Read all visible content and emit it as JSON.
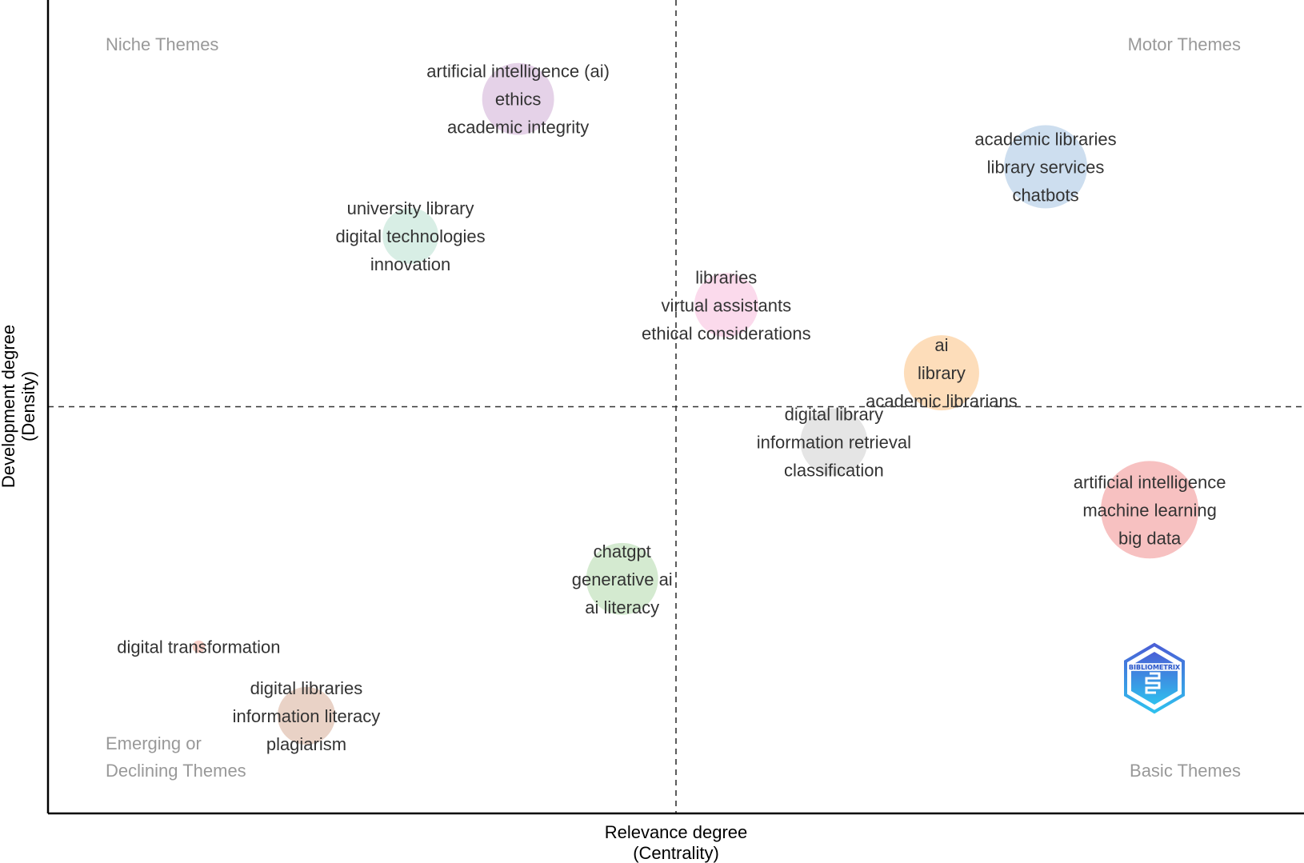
{
  "chart_data": {
    "type": "scatter",
    "subtype": "bubble thematic map",
    "xlabel": [
      "Relevance degree",
      "(Centrality)"
    ],
    "ylabel": [
      "Development degree",
      "(Density)"
    ],
    "xlim": [
      0,
      3.5
    ],
    "ylim": [
      0,
      60
    ],
    "ticks": "none",
    "grid": false,
    "reference_lines": {
      "x": 1.75,
      "y": 30.0,
      "style": "dashed"
    },
    "quadrants": {
      "top_left": "Niche Themes",
      "top_right": "Motor Themes",
      "bottom_left": [
        "Emerging or",
        "Declining Themes"
      ],
      "bottom_right": "Basic Themes"
    },
    "clusters": [
      {
        "labels": [
          "artificial intelligence (ai)",
          "ethics",
          "academic integrity"
        ],
        "centrality": 1.31,
        "density": 52.7,
        "frequency": 202,
        "color": "#e2cde6"
      },
      {
        "labels": [
          "university library",
          "digital technologies",
          "innovation"
        ],
        "centrality": 1.01,
        "density": 42.6,
        "frequency": 122,
        "color": "#d4ece2"
      },
      {
        "labels": [
          "academic libraries",
          "library services",
          "chatbots"
        ],
        "centrality": 2.78,
        "density": 47.7,
        "frequency": 270,
        "color": "#c8daed"
      },
      {
        "labels": [
          "libraries",
          "virtual assistants",
          "ethical considerations"
        ],
        "centrality": 1.89,
        "density": 37.5,
        "frequency": 160,
        "color": "#fbd6ea"
      },
      {
        "labels": [
          "ai",
          "library",
          "academic librarians"
        ],
        "centrality": 2.49,
        "density": 32.5,
        "frequency": 221,
        "color": "#fdd9b3"
      },
      {
        "labels": [
          "digital library",
          "information retrieval",
          "classification"
        ],
        "centrality": 2.19,
        "density": 27.4,
        "frequency": 176,
        "color": "#e2e2e2"
      },
      {
        "labels": [
          "artificial intelligence",
          "machine learning",
          "big data"
        ],
        "centrality": 3.07,
        "density": 22.4,
        "frequency": 372,
        "color": "#f6baba"
      },
      {
        "labels": [
          "chatgpt",
          "generative ai",
          "ai literacy"
        ],
        "centrality": 1.6,
        "density": 17.3,
        "frequency": 202,
        "color": "#cfe8cb"
      },
      {
        "labels": [
          "digital transformation"
        ],
        "centrality": 0.42,
        "density": 12.3,
        "frequency": 6,
        "color": "#f8cbc2"
      },
      {
        "labels": [
          "digital libraries",
          "information literacy",
          "plagiarism"
        ],
        "centrality": 0.72,
        "density": 7.2,
        "frequency": 130,
        "color": "#e7cdc0"
      }
    ],
    "logo": "BIBLIOMETRIX"
  }
}
